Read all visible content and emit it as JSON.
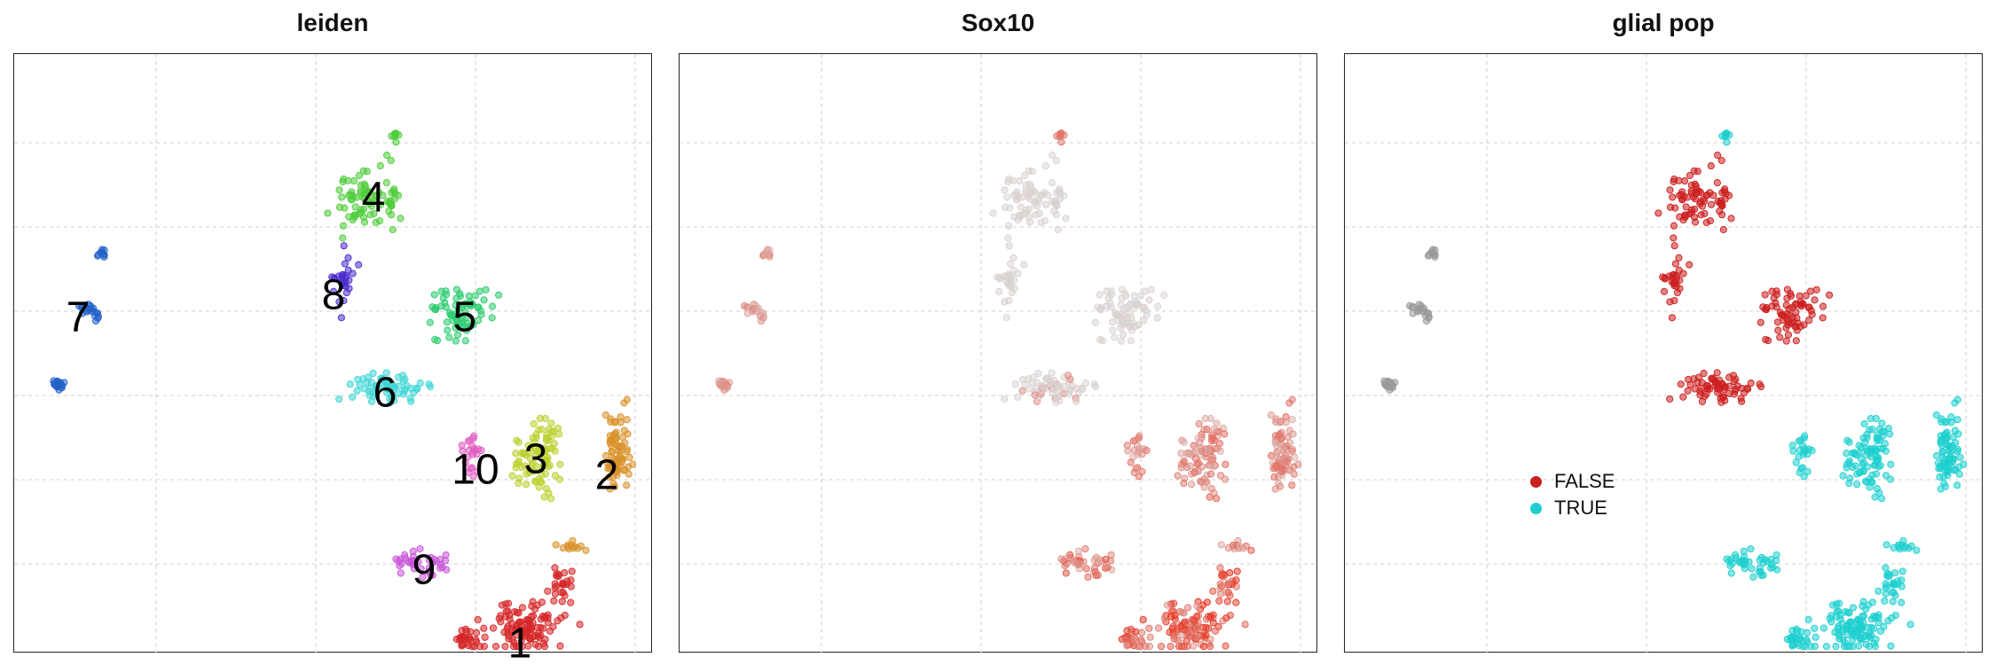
{
  "chart_data": [
    {
      "type": "scatter",
      "title": "leiden",
      "grid": true,
      "clusters": [
        {
          "label": "1",
          "color": "#d62728",
          "anchor": [
            570,
            668
          ],
          "parts": [
            [
              575,
              645,
              70,
              40,
              110
            ],
            [
              510,
              662,
              20,
              14,
              25
            ],
            [
              615,
              600,
              18,
              30,
              25
            ]
          ]
        },
        {
          "label": "2",
          "color": "#d9912a",
          "anchor": [
            668,
            478
          ],
          "parts": [
            [
              680,
              450,
              22,
              70,
              75
            ],
            [
              628,
              555,
              20,
              10,
              12
            ]
          ]
        },
        {
          "label": "3",
          "color": "#bcd130",
          "anchor": [
            588,
            460
          ],
          "parts": [
            [
              592,
              455,
              38,
              62,
              90
            ]
          ]
        },
        {
          "label": "4",
          "color": "#4fcc3a",
          "anchor": [
            405,
            165
          ],
          "parts": [
            [
              398,
              160,
              55,
              55,
              80
            ],
            [
              428,
              92,
              10,
              10,
              8
            ]
          ]
        },
        {
          "label": "5",
          "color": "#2ecc71",
          "anchor": [
            508,
            300
          ],
          "parts": [
            [
              500,
              290,
              55,
              45,
              70
            ]
          ]
        },
        {
          "label": "6",
          "color": "#3fd6d6",
          "anchor": [
            418,
            385
          ],
          "parts": [
            [
              425,
              375,
              70,
              25,
              65
            ]
          ]
        },
        {
          "label": "7",
          "color": "#2563c9",
          "anchor": [
            72,
            300
          ],
          "parts": [
            [
              98,
              225,
              8,
              8,
              10
            ],
            [
              85,
              290,
              15,
              15,
              20
            ],
            [
              50,
              372,
              12,
              10,
              18
            ]
          ]
        },
        {
          "label": "8",
          "color": "#4a2ccf",
          "anchor": [
            360,
            275
          ],
          "parts": [
            [
              372,
              255,
              20,
              50,
              28
            ]
          ]
        },
        {
          "label": "9",
          "color": "#c955d9",
          "anchor": [
            462,
            585
          ],
          "parts": [
            [
              460,
              575,
              40,
              20,
              40
            ]
          ]
        },
        {
          "label": "10",
          "color": "#e05cc0",
          "anchor": [
            520,
            472
          ],
          "parts": [
            [
              515,
              455,
              14,
              40,
              22
            ]
          ]
        }
      ]
    },
    {
      "type": "scatter",
      "title": "Sox10",
      "grid": true,
      "colormap": [
        "#d8d8d8",
        "#e8331f"
      ]
    },
    {
      "type": "scatter",
      "title": "glial pop",
      "grid": true,
      "categories": [
        "FALSE",
        "TRUE"
      ],
      "colors": {
        "FALSE": "#cc1f1f",
        "TRUE": "#1fcfcf",
        "NA": "#9a9a9a"
      }
    }
  ],
  "legend": [
    {
      "label": "FALSE",
      "color": "#cc1f1f"
    },
    {
      "label": "TRUE",
      "color": "#1fcfcf"
    }
  ]
}
